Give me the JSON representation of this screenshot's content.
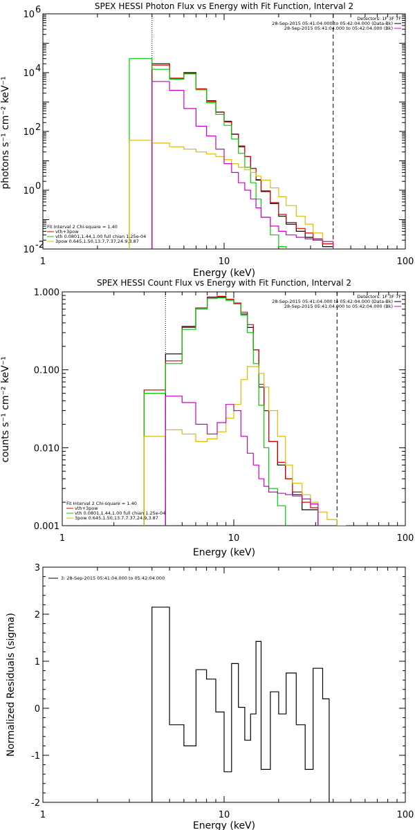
{
  "chart_data": [
    {
      "type": "line",
      "id": "photon",
      "title": "SPEX HESSI Photon Flux vs Energy with Fit Function, Interval 2",
      "xlabel": "Energy (keV)",
      "ylabel": "photons s⁻¹ cm⁻² keV⁻¹",
      "xscale": "log",
      "yscale": "log",
      "xlim": [
        1,
        100
      ],
      "ylim": [
        0.01,
        1000000
      ],
      "xticks": [
        {
          "v": 1,
          "label": "1"
        },
        {
          "v": 10,
          "label": "10"
        },
        {
          "v": 100,
          "label": "100"
        }
      ],
      "yticks": [
        {
          "v": 0.01,
          "label": "10",
          "exp": "-2"
        },
        {
          "v": 1,
          "label": "10",
          "exp": "0"
        },
        {
          "v": 100,
          "label": "10",
          "exp": "2"
        },
        {
          "v": 10000,
          "label": "10",
          "exp": "4"
        },
        {
          "v": 1000000,
          "label": "10",
          "exp": "6"
        }
      ],
      "vlines": [
        {
          "x": 4,
          "style": "dotted"
        },
        {
          "x": 40,
          "style": "dashed"
        }
      ],
      "legend_tr": [
        {
          "text": "Detectors: 1F 3F 7F",
          "color": "#000000",
          "line": false
        },
        {
          "text": "28-Sep-2015 05:41:04.000 to 05:42:04.000 (Data-Bk)",
          "color": "#000000",
          "line": true
        },
        {
          "text": "28-Sep-2015 05:41:04.000 to 05:42:04.000 (Bk)",
          "color": "#cc00cc",
          "line": true
        }
      ],
      "legend_bl": [
        {
          "text": "Fit Interval 2   Chi-square = 1.40",
          "color": "#000000",
          "line": false
        },
        {
          "text": "vth+3pow",
          "color": "#dd0000",
          "line": true
        },
        {
          "text": "vth 0.0801,1.44,1.00  full chian 1.25e-04",
          "color": "#00cc00",
          "line": true
        },
        {
          "text": "3pow 0.645,1.50,13.7,7.37,24.9,3.87",
          "color": "#ddbb00",
          "line": true
        }
      ],
      "edges": [
        3.0,
        4.0,
        5.0,
        6.0,
        7.0,
        8.0,
        9.0,
        10.0,
        11.0,
        12.0,
        13.0,
        14.0,
        15.0,
        16.0,
        18.0,
        20.0,
        22.0,
        25.0,
        28.0,
        31.0,
        35.0,
        40.0,
        45.0,
        50.0
      ],
      "series": [
        {
          "name": "Data-Bk",
          "color": "#000000",
          "values": [
            null,
            20000,
            6000,
            10000,
            2800,
            1100,
            450,
            220,
            80,
            30,
            14,
            5.5,
            2.2,
            0.9,
            0.35,
            0.13,
            0.07,
            0.04,
            0.025,
            0.02,
            0.012,
            null,
            null
          ]
        },
        {
          "name": "vth+3pow",
          "color": "#dd0000",
          "values": [
            null,
            18000,
            6500,
            9500,
            2800,
            1050,
            460,
            210,
            82,
            32,
            14,
            5.5,
            2.3,
            0.95,
            0.38,
            0.15,
            0.08,
            0.05,
            0.035,
            0.022,
            0.015,
            null,
            null
          ]
        },
        {
          "name": "vth",
          "color": "#00cc00",
          "values": [
            30000,
            13000,
            6000,
            9000,
            2600,
            950,
            380,
            160,
            55,
            18,
            6,
            1.8,
            0.5,
            0.12,
            0.03,
            0.012,
            null,
            null,
            null,
            null,
            null,
            null,
            null
          ]
        },
        {
          "name": "3pow",
          "color": "#ddbb00",
          "values": [
            50,
            40,
            30,
            25,
            20,
            17,
            14,
            11,
            8,
            6,
            5,
            4,
            3,
            2.2,
            1.2,
            0.6,
            0.3,
            0.13,
            0.07,
            0.035,
            0.018,
            null,
            null
          ]
        },
        {
          "name": "Bk",
          "color": "#cc00cc",
          "values": [
            null,
            5000,
            2500,
            600,
            150,
            70,
            25,
            8,
            4,
            1.8,
            1,
            0.5,
            0.25,
            0.12,
            0.06,
            0.04,
            0.03,
            0.025,
            0.022,
            0.02,
            0.018,
            null,
            null
          ]
        }
      ]
    },
    {
      "type": "line",
      "id": "count",
      "title": "SPEX HESSI Count Flux vs Energy with Fit Function, Interval 2",
      "xlabel": "Energy (keV)",
      "ylabel": "counts s⁻¹ cm⁻² keV⁻¹",
      "xscale": "log",
      "yscale": "log",
      "xlim": [
        1,
        100
      ],
      "ylim": [
        0.001,
        1.0
      ],
      "xticks": [
        {
          "v": 1,
          "label": "1"
        },
        {
          "v": 10,
          "label": "10"
        },
        {
          "v": 100,
          "label": "100"
        }
      ],
      "yticks": [
        {
          "v": 0.001,
          "label": "0.001"
        },
        {
          "v": 0.01,
          "label": "0.010"
        },
        {
          "v": 0.1,
          "label": "0.100"
        },
        {
          "v": 1.0,
          "label": "1.000"
        }
      ],
      "vlines": [
        {
          "x": 4,
          "style": "dotted"
        },
        {
          "x": 40,
          "style": "dashed"
        }
      ],
      "legend_tr": [
        {
          "text": "Detectors: 1F 3F 7F",
          "color": "#000000",
          "line": false
        },
        {
          "text": "28-Sep-2015 05:41:04.000 to 05:42:04.000 (Data-Bk)",
          "color": "#000000",
          "line": true
        },
        {
          "text": "28-Sep-2015 05:41:04.000 to 05:42:04.000 (Bk)",
          "color": "#cc00cc",
          "line": true
        }
      ],
      "legend_bl": [
        {
          "text": "Fit Interval 2   Chi-square = 1.40",
          "color": "#000000",
          "line": false
        },
        {
          "text": "vth+3pow",
          "color": "#dd0000",
          "line": true
        },
        {
          "text": "vth 0.0801,1.44,1.00  full chian 1.25e-04",
          "color": "#00cc00",
          "line": true
        },
        {
          "text": "3pow 0.645,1.50,13.7,7.37,24.9,3.87",
          "color": "#ddbb00",
          "line": true
        }
      ],
      "edges": [
        3.0,
        4.0,
        5.0,
        6.0,
        7.0,
        8.0,
        9.0,
        10.0,
        11.0,
        12.0,
        13.0,
        14.0,
        15.0,
        16.0,
        18.0,
        20.0,
        22.0,
        25.0,
        28.0,
        31.0,
        35.0,
        40.0,
        45.0,
        50.0
      ],
      "series": [
        {
          "name": "Data-Bk",
          "color": "#000000",
          "values": [
            null,
            0.16,
            0.36,
            0.62,
            0.85,
            0.86,
            0.8,
            0.72,
            0.52,
            0.35,
            0.18,
            0.06,
            0.03,
            0.012,
            0.006,
            0.004,
            0.0025,
            0.0016,
            0.0016,
            null,
            null,
            null,
            null
          ]
        },
        {
          "name": "vth+3pow",
          "color": "#dd0000",
          "values": [
            0.055,
            0.13,
            0.35,
            0.62,
            0.86,
            0.88,
            0.8,
            0.72,
            0.55,
            0.38,
            0.18,
            0.065,
            0.03,
            0.012,
            0.0065,
            0.004,
            0.0027,
            0.002,
            0.0017,
            null,
            null,
            null,
            null
          ]
        },
        {
          "name": "vth",
          "color": "#00cc00",
          "values": [
            0.05,
            0.12,
            0.33,
            0.6,
            0.82,
            0.84,
            0.78,
            0.7,
            0.5,
            0.3,
            0.12,
            0.035,
            0.01,
            0.003,
            0.0018,
            null,
            null,
            null,
            null,
            null,
            null,
            null,
            null
          ]
        },
        {
          "name": "3pow",
          "color": "#ddbb00",
          "values": [
            0.014,
            0.017,
            0.015,
            0.012,
            0.013,
            0.016,
            0.024,
            0.036,
            0.075,
            0.11,
            0.11,
            0.09,
            0.06,
            0.03,
            0.014,
            0.006,
            0.0035,
            0.0025,
            0.002,
            0.0015,
            0.0012,
            0.001,
            null
          ]
        },
        {
          "name": "Bk",
          "color": "#cc00cc",
          "values": [
            null,
            0.046,
            0.038,
            0.02,
            0.015,
            0.021,
            0.036,
            0.03,
            0.014,
            0.0085,
            0.006,
            0.004,
            0.0032,
            0.0027,
            0.0026,
            0.0025,
            0.0024,
            0.0022,
            0.0019,
            null,
            null,
            null,
            null
          ]
        }
      ]
    },
    {
      "type": "line",
      "id": "residuals",
      "title": "",
      "xlabel": "Energy (keV)",
      "ylabel": "Normalized Residuals (sigma)",
      "xscale": "log",
      "yscale": "linear",
      "xlim": [
        1,
        100
      ],
      "ylim": [
        -2,
        3
      ],
      "xticks": [
        {
          "v": 1,
          "label": "1"
        },
        {
          "v": 10,
          "label": "10"
        },
        {
          "v": 100,
          "label": "100"
        }
      ],
      "yticks": [
        {
          "v": -2,
          "label": "-2"
        },
        {
          "v": -1,
          "label": "-1"
        },
        {
          "v": 0,
          "label": "0"
        },
        {
          "v": 1,
          "label": "1"
        },
        {
          "v": 2,
          "label": "2"
        },
        {
          "v": 3,
          "label": "3"
        }
      ],
      "vlines": [],
      "legend_tr": [],
      "legend_bl": [],
      "legend_tl": [
        {
          "text": "3: 28-Sep-2015 05:41:04.000 to 05:42:04.000",
          "color": "#000000",
          "line": true
        }
      ],
      "edges": [
        4.0,
        5.0,
        6.0,
        7.0,
        8.0,
        9.0,
        10.0,
        11.0,
        12.0,
        13.0,
        14.0,
        15.0,
        16.0,
        18.0,
        20.0,
        22.0,
        25.0,
        28.0,
        31.0,
        35.0,
        38.0,
        40.0
      ],
      "series": [
        {
          "name": "residuals",
          "color": "#000000",
          "values": [
            2.15,
            -0.35,
            -0.8,
            0.82,
            0.62,
            -0.08,
            -1.35,
            0.95,
            0.02,
            -0.68,
            -0.12,
            1.42,
            -1.3,
            0.35,
            -0.12,
            0.75,
            -0.35,
            -1.3,
            0.85,
            0.2,
            null
          ]
        }
      ]
    }
  ]
}
